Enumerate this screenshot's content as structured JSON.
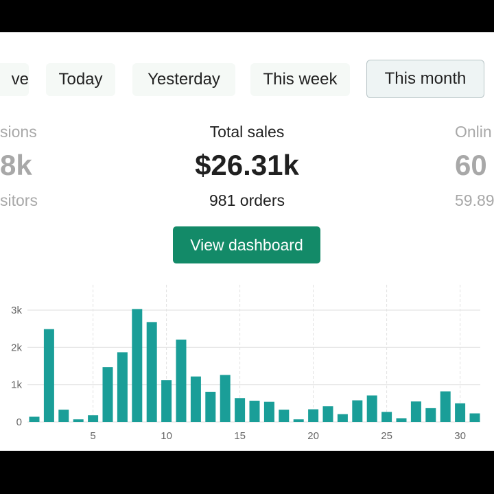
{
  "tabs": [
    {
      "label": "ve",
      "active": false
    },
    {
      "label": "Today",
      "active": false
    },
    {
      "label": "Yesterday",
      "active": false
    },
    {
      "label": "This week",
      "active": false
    },
    {
      "label": "This month",
      "active": true
    }
  ],
  "stats": {
    "left": {
      "label": "sions",
      "value": "8k",
      "sub": "sitors"
    },
    "center": {
      "label": "Total sales",
      "value": "$26.31k",
      "sub": "981 orders"
    },
    "right": {
      "label": "Onlin",
      "value": "60",
      "sub": "59.89"
    }
  },
  "view_dashboard_label": "View dashboard",
  "colors": {
    "bar": "#1a9e98",
    "button": "#138a68"
  },
  "chart_data": {
    "type": "bar",
    "x": [
      1,
      2,
      3,
      4,
      5,
      6,
      7,
      8,
      9,
      10,
      11,
      12,
      13,
      14,
      15,
      16,
      17,
      18,
      19,
      20,
      21,
      22,
      23,
      24,
      25,
      26,
      27,
      28,
      29,
      30,
      31
    ],
    "values": [
      140,
      2490,
      330,
      70,
      180,
      1470,
      1870,
      3030,
      2680,
      1120,
      2210,
      1220,
      810,
      1260,
      640,
      570,
      540,
      330,
      70,
      340,
      420,
      210,
      580,
      710,
      270,
      100,
      550,
      370,
      820,
      500,
      230
    ],
    "yticks": [
      "0",
      "1k",
      "2k",
      "3k"
    ],
    "ytick_values": [
      0,
      1000,
      2000,
      3000
    ],
    "xticks": [
      "5",
      "10",
      "15",
      "20",
      "25",
      "30"
    ],
    "xtick_values": [
      5,
      10,
      15,
      20,
      25,
      30
    ],
    "ylim": [
      0,
      3000
    ],
    "xlim": [
      0.5,
      31.5
    ],
    "grid": true
  }
}
